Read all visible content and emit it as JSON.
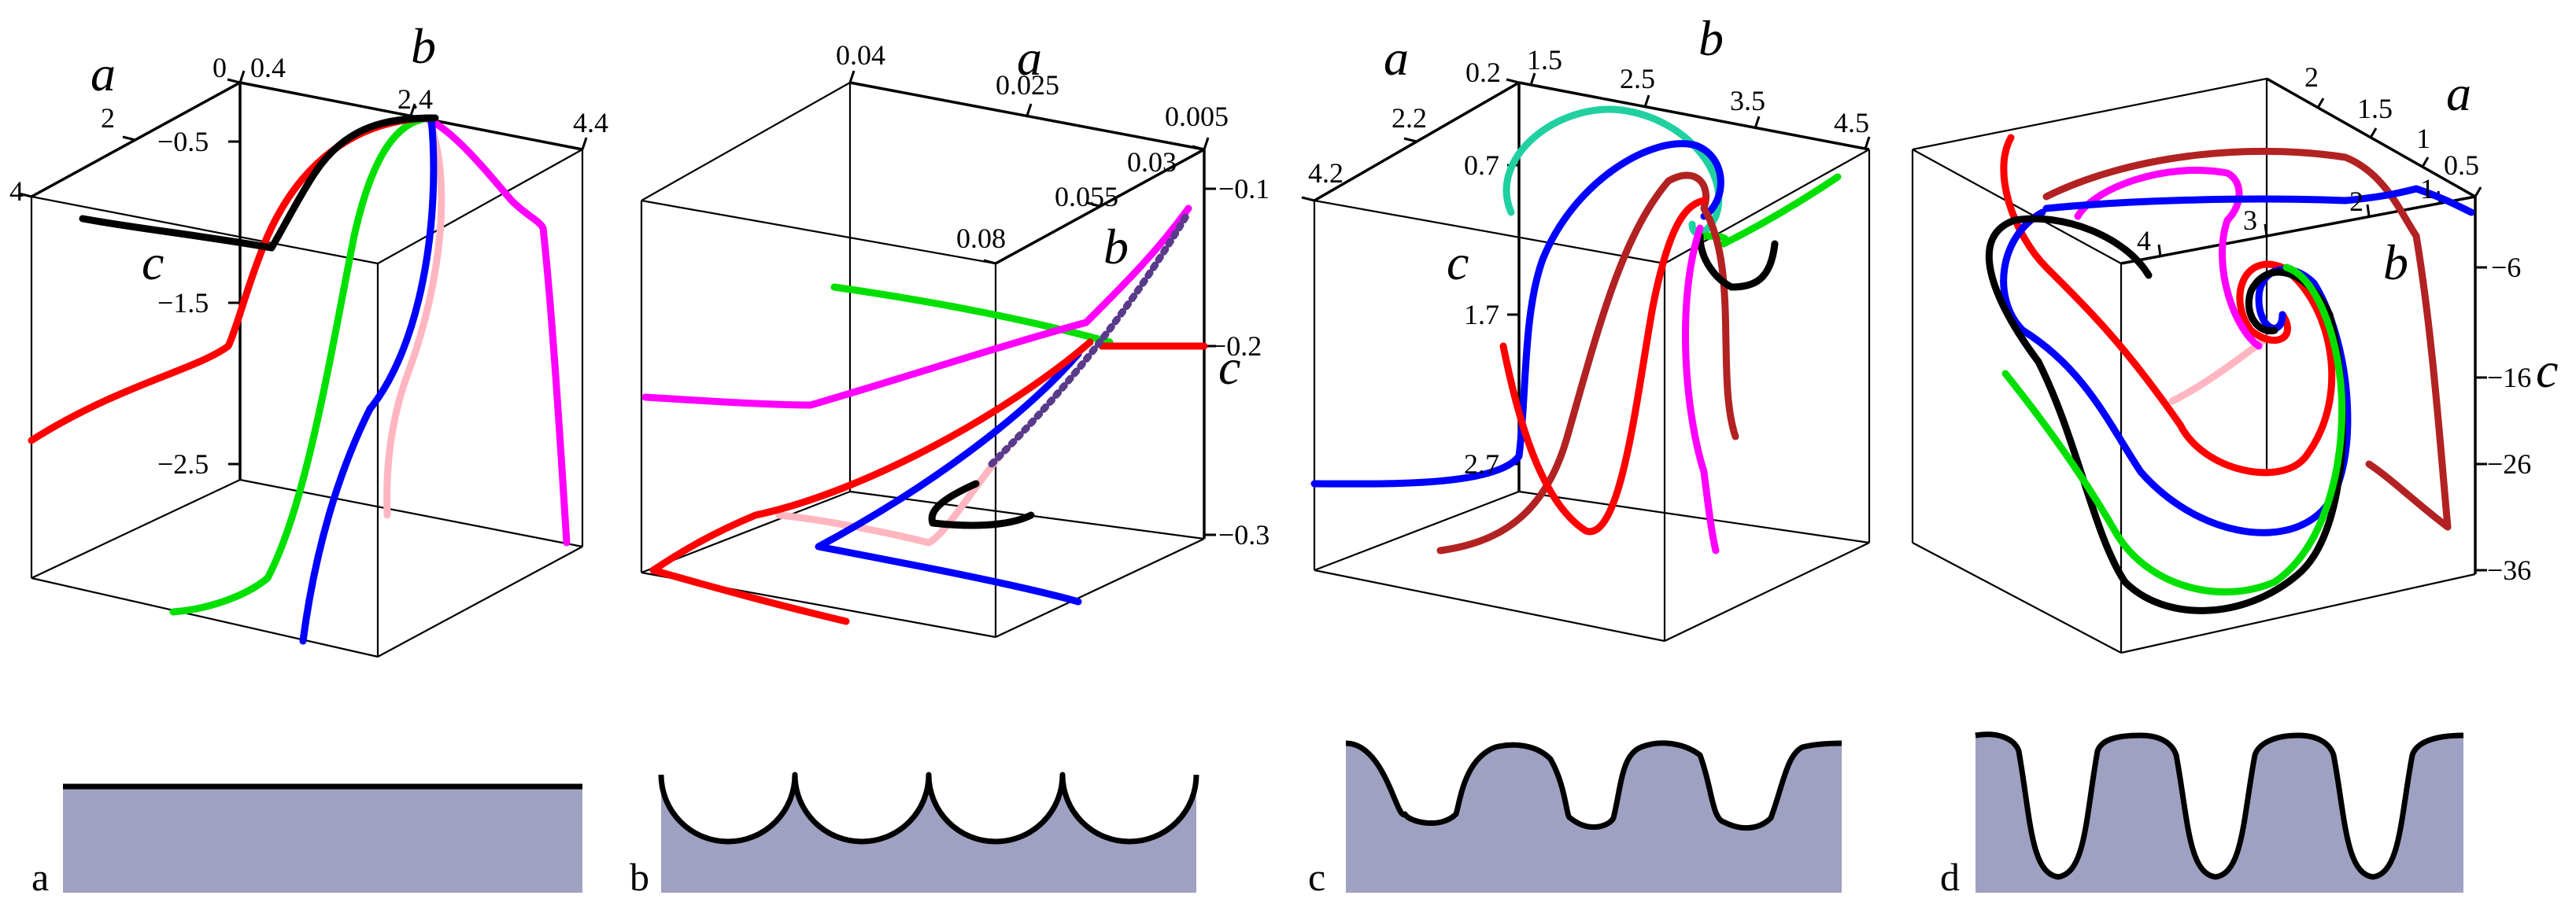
{
  "panels": [
    {
      "label": "a",
      "axes": {
        "a": {
          "label": "a",
          "ticks": [
            "4",
            "2",
            "0"
          ]
        },
        "b": {
          "label": "b",
          "ticks": [
            "0.4",
            "2.4",
            "4.4"
          ]
        },
        "c": {
          "label": "c",
          "ticks": [
            "−0.5",
            "−1.5",
            "−2.5"
          ]
        }
      },
      "trajectory_colors": [
        "#000000",
        "#ff0000",
        "#00e000",
        "#0000ff",
        "#ffb6c1",
        "#ff00ff"
      ]
    },
    {
      "label": "b",
      "axes": {
        "a": {
          "label": "a",
          "ticks": [
            "0.04",
            "0.025",
            "0.005"
          ]
        },
        "b": {
          "label": "b",
          "ticks": [
            "0.08",
            "0.055",
            "0.03"
          ]
        },
        "c": {
          "label": "c",
          "ticks": [
            "−0.1",
            "−0.2",
            "−0.3"
          ]
        }
      },
      "trajectory_colors": [
        "#00e000",
        "#ff00ff",
        "#ff0000",
        "#0000ff",
        "#000000",
        "#ffb6c1"
      ]
    },
    {
      "label": "c",
      "axes": {
        "a": {
          "label": "a",
          "ticks": [
            "4.2",
            "2.2",
            "0.2"
          ]
        },
        "b": {
          "label": "b",
          "ticks": [
            "1.5",
            "2.5",
            "3.5",
            "4.5"
          ]
        },
        "c": {
          "label": "c",
          "ticks": [
            "0.7",
            "1.7",
            "2.7"
          ]
        }
      },
      "trajectory_colors": [
        "#20d0a0",
        "#0000ff",
        "#b22222",
        "#ff0000",
        "#00e000",
        "#000000",
        "#ff00ff"
      ]
    },
    {
      "label": "d",
      "axes": {
        "a": {
          "label": "a",
          "ticks": [
            "2",
            "1.5",
            "1",
            "0.5"
          ]
        },
        "b": {
          "label": "b",
          "ticks": [
            "4",
            "3",
            "2",
            "1"
          ]
        },
        "c": {
          "label": "c",
          "ticks": [
            "−6",
            "−16",
            "−26",
            "−36"
          ]
        }
      },
      "trajectory_colors": [
        "#ff0000",
        "#b22222",
        "#ff00ff",
        "#0000ff",
        "#000000",
        "#00e000",
        "#ffb6c1"
      ]
    }
  ],
  "surface_profiles": [
    {
      "label": "a",
      "type": "flat"
    },
    {
      "label": "b",
      "type": "shallow-scallops",
      "count": 4
    },
    {
      "label": "c",
      "type": "rounded-grooves",
      "count": 3
    },
    {
      "label": "d",
      "type": "deep-grooves",
      "count": 3
    }
  ],
  "colors": {
    "surface_fill": "#9fa1c2",
    "outline": "#000000"
  }
}
